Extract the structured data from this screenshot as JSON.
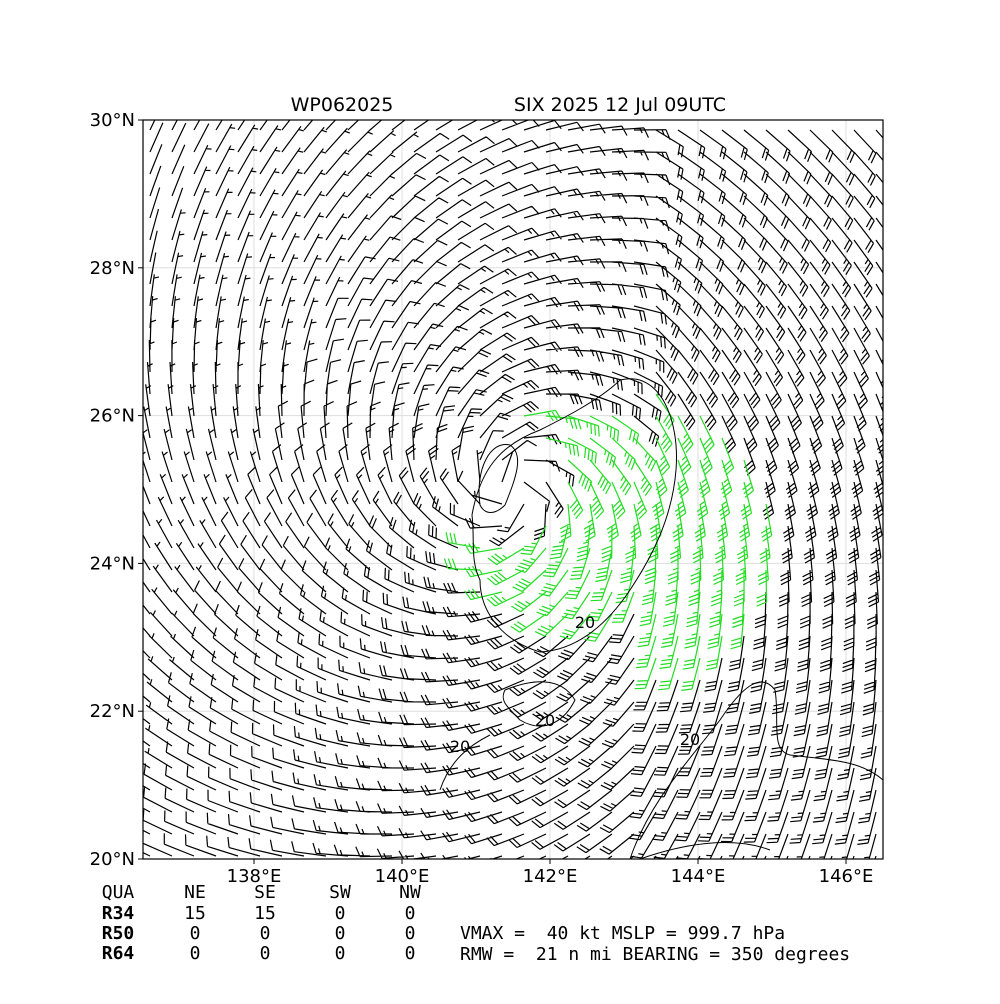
{
  "header": {
    "storm_id": "WP062025",
    "title": "SIX 2025 12 Jul 09UTC"
  },
  "map": {
    "xlim": [
      136.5,
      146.5
    ],
    "ylim": [
      20,
      30
    ],
    "xticks": [
      {
        "value": 138,
        "label": "138°E"
      },
      {
        "value": 140,
        "label": "140°E"
      },
      {
        "value": 142,
        "label": "142°E"
      },
      {
        "value": 144,
        "label": "144°E"
      },
      {
        "value": 146,
        "label": "146°E"
      }
    ],
    "yticks": [
      {
        "value": 20,
        "label": "20°N"
      },
      {
        "value": 22,
        "label": "22°N"
      },
      {
        "value": 24,
        "label": "24°N"
      },
      {
        "value": 26,
        "label": "26°N"
      },
      {
        "value": 28,
        "label": "28°N"
      },
      {
        "value": 30,
        "label": "30°N"
      }
    ],
    "contour_labels": [
      "20",
      "20",
      "20",
      "20"
    ]
  },
  "table": {
    "header": [
      "QUA",
      "NE",
      "SE",
      "SW",
      "NW"
    ],
    "rows": [
      [
        "R34",
        15,
        15,
        0,
        0
      ],
      [
        "R50",
        0,
        0,
        0,
        0
      ],
      [
        "R64",
        0,
        0,
        0,
        0
      ]
    ]
  },
  "info": [
    "VMAX =  40 kt MSLP = 999.7 hPa",
    "RMW =  21 n mi BEARING = 350 degrees"
  ]
}
